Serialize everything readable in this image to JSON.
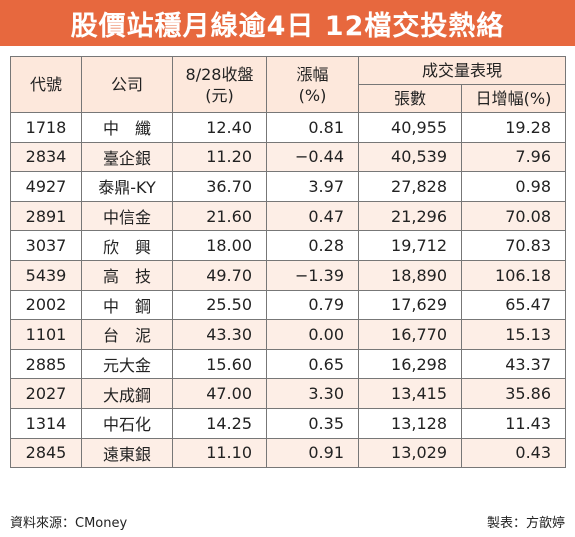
{
  "title": "股價站穩月線逾4日 12檔交投熱絡",
  "headers": {
    "code": "代號",
    "company": "公司",
    "close_line1": "8/28收盤",
    "close_line2": "(元)",
    "change_line1": "漲幅",
    "change_line2": "(%)",
    "volume_group": "成交量表現",
    "shares": "張數",
    "daily_increase": "日增幅(%)"
  },
  "rows": [
    {
      "code": "1718",
      "name": "中　纖",
      "close": "12.40",
      "change": "0.81",
      "shares": "40,955",
      "daily": "19.28"
    },
    {
      "code": "2834",
      "name": "臺企銀",
      "close": "11.20",
      "change": "−0.44",
      "shares": "40,539",
      "daily": "7.96"
    },
    {
      "code": "4927",
      "name": "泰鼎-KY",
      "close": "36.70",
      "change": "3.97",
      "shares": "27,828",
      "daily": "0.98"
    },
    {
      "code": "2891",
      "name": "中信金",
      "close": "21.60",
      "change": "0.47",
      "shares": "21,296",
      "daily": "70.08"
    },
    {
      "code": "3037",
      "name": "欣　興",
      "close": "18.00",
      "change": "0.28",
      "shares": "19,712",
      "daily": "70.83"
    },
    {
      "code": "5439",
      "name": "高　技",
      "close": "49.70",
      "change": "−1.39",
      "shares": "18,890",
      "daily": "106.18"
    },
    {
      "code": "2002",
      "name": "中　鋼",
      "close": "25.50",
      "change": "0.79",
      "shares": "17,629",
      "daily": "65.47"
    },
    {
      "code": "1101",
      "name": "台　泥",
      "close": "43.30",
      "change": "0.00",
      "shares": "16,770",
      "daily": "15.13"
    },
    {
      "code": "2885",
      "name": "元大金",
      "close": "15.60",
      "change": "0.65",
      "shares": "16,298",
      "daily": "43.37"
    },
    {
      "code": "2027",
      "name": "大成鋼",
      "close": "47.00",
      "change": "3.30",
      "shares": "13,415",
      "daily": "35.86"
    },
    {
      "code": "1314",
      "name": "中石化",
      "close": "14.25",
      "change": "0.35",
      "shares": "13,128",
      "daily": "11.43"
    },
    {
      "code": "2845",
      "name": "遠東銀",
      "close": "11.10",
      "change": "0.91",
      "shares": "13,029",
      "daily": "0.43"
    }
  ],
  "footer": {
    "source": "資料來源：CMoney",
    "maker": "製表：方歆婷"
  },
  "colors": {
    "title_bg": "#e7683e",
    "header_bg": "#fde8dc",
    "stripe_bg": "#fdeee6"
  }
}
